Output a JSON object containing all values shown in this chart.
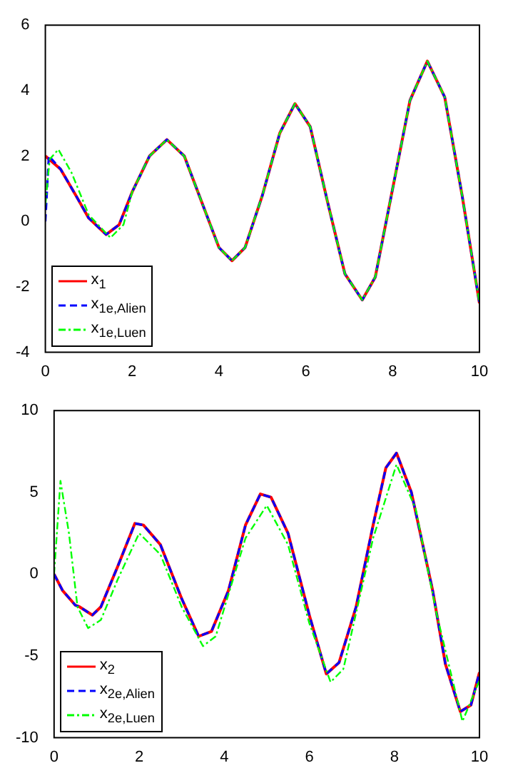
{
  "chart_data": [
    {
      "type": "line",
      "xlim": [
        0,
        10
      ],
      "xticks": [
        0,
        2,
        4,
        6,
        8,
        10
      ],
      "ylim": [
        -4,
        6
      ],
      "yticks": [
        -4,
        -2,
        0,
        2,
        4,
        6
      ],
      "grid": false,
      "legend": "bottom left",
      "marker": "none",
      "series": [
        {
          "name": "x$_{1}$",
          "color": "#ff0000",
          "line_style": "solid",
          "x": [
            0,
            0.35,
            0.7,
            1.0,
            1.4,
            1.7,
            2.0,
            2.4,
            2.8,
            3.2,
            3.6,
            4.0,
            4.3,
            4.6,
            5.0,
            5.4,
            5.75,
            6.1,
            6.5,
            6.9,
            7.3,
            7.6,
            8.0,
            8.4,
            8.8,
            9.2,
            9.6,
            10
          ],
          "values": [
            2,
            1.6,
            0.8,
            0.1,
            -0.4,
            -0.1,
            0.9,
            2.0,
            2.5,
            2.0,
            0.6,
            -0.8,
            -1.2,
            -0.8,
            0.8,
            2.7,
            3.6,
            2.9,
            0.6,
            -1.6,
            -2.4,
            -1.7,
            1.0,
            3.7,
            4.9,
            3.8,
            0.8,
            -2.5
          ]
        },
        {
          "name": "x$_{1e,Alien}$",
          "color": "#0000ff",
          "line_style": "dashed",
          "x": [
            0,
            0.08,
            0.35,
            0.7,
            1.0,
            1.4,
            1.7,
            2.0,
            2.4,
            2.8,
            3.2,
            3.6,
            4.0,
            4.3,
            4.6,
            5.0,
            5.4,
            5.75,
            6.1,
            6.5,
            6.9,
            7.3,
            7.6,
            8.0,
            8.4,
            8.8,
            9.2,
            9.6,
            10
          ],
          "values": [
            0,
            2,
            1.6,
            0.8,
            0.1,
            -0.4,
            -0.1,
            0.9,
            2.0,
            2.5,
            2.0,
            0.6,
            -0.8,
            -1.2,
            -0.8,
            0.8,
            2.7,
            3.6,
            2.9,
            0.6,
            -1.6,
            -2.4,
            -1.7,
            1.0,
            3.7,
            4.9,
            3.8,
            0.8,
            -2.5
          ]
        },
        {
          "name": "x$_{1e,Luen}$",
          "color": "#00ff00",
          "line_style": "dotted",
          "x": [
            0,
            0.1,
            0.3,
            0.6,
            1.0,
            1.5,
            1.8,
            2.0,
            2.4,
            2.8,
            3.2,
            3.6,
            4.0,
            4.3,
            4.6,
            5.0,
            5.4,
            5.75,
            6.1,
            6.5,
            6.9,
            7.3,
            7.6,
            8.0,
            8.4,
            8.8,
            9.2,
            9.6,
            10
          ],
          "values": [
            0.5,
            1.9,
            2.2,
            1.5,
            0.2,
            -0.5,
            -0.1,
            0.9,
            2.0,
            2.5,
            2.0,
            0.6,
            -0.8,
            -1.2,
            -0.8,
            0.8,
            2.7,
            3.6,
            2.9,
            0.6,
            -1.6,
            -2.4,
            -1.7,
            1.0,
            3.7,
            4.9,
            3.8,
            0.8,
            -2.5
          ]
        }
      ]
    },
    {
      "type": "line",
      "xlim": [
        0,
        10
      ],
      "xticks": [
        0,
        2,
        4,
        6,
        8,
        10
      ],
      "ylim": [
        -10,
        10
      ],
      "yticks": [
        -10,
        -5,
        0,
        5,
        10
      ],
      "grid": false,
      "legend": "bottom left",
      "marker": "none",
      "series": [
        {
          "name": "x$_{2}$",
          "color": "#ff0000",
          "line_style": "solid",
          "x": [
            0,
            0.2,
            0.5,
            0.6,
            0.9,
            1.1,
            1.5,
            1.9,
            2.1,
            2.5,
            3.0,
            3.4,
            3.7,
            4.1,
            4.5,
            4.85,
            5.1,
            5.5,
            6.0,
            6.4,
            6.7,
            7.1,
            7.5,
            7.8,
            8.05,
            8.4,
            8.9,
            9.2,
            9.55,
            9.8,
            10
          ],
          "values": [
            0,
            -1,
            -1.9,
            -2.0,
            -2.5,
            -2.0,
            0.5,
            3.1,
            3.0,
            1.8,
            -1.5,
            -3.8,
            -3.5,
            -1.0,
            3.0,
            4.9,
            4.7,
            2.5,
            -2.5,
            -6.1,
            -5.4,
            -2.0,
            3.0,
            6.5,
            7.4,
            5.0,
            -1.0,
            -5.5,
            -8.4,
            -8.0,
            -6.0
          ]
        },
        {
          "name": "x$_{2e,Alien}$",
          "color": "#0000ff",
          "line_style": "dashed",
          "x": [
            0,
            0.2,
            0.5,
            0.6,
            0.9,
            1.1,
            1.5,
            1.9,
            2.1,
            2.5,
            3.0,
            3.4,
            3.7,
            4.1,
            4.5,
            4.85,
            5.1,
            5.5,
            6.0,
            6.4,
            6.7,
            7.1,
            7.5,
            7.8,
            8.05,
            8.4,
            8.9,
            9.2,
            9.55,
            9.8,
            10
          ],
          "values": [
            0,
            -1,
            -1.9,
            -2.0,
            -2.5,
            -2.0,
            0.5,
            3.1,
            3.0,
            1.8,
            -1.5,
            -3.8,
            -3.5,
            -1.0,
            3.0,
            4.9,
            4.7,
            2.5,
            -2.5,
            -6.1,
            -5.4,
            -2.0,
            3.0,
            6.5,
            7.4,
            5.0,
            -1.0,
            -5.5,
            -8.4,
            -8.0,
            -6.0
          ]
        },
        {
          "name": "x$_{2e,Luen}$",
          "color": "#00ff00",
          "line_style": "dotted",
          "x": [
            0,
            0.15,
            0.35,
            0.55,
            0.8,
            1.1,
            1.5,
            2.0,
            2.5,
            3.0,
            3.5,
            3.8,
            4.5,
            5.0,
            5.5,
            6.0,
            6.5,
            6.8,
            7.5,
            8.05,
            8.5,
            9.0,
            9.6,
            10
          ],
          "values": [
            0,
            5.7,
            2.5,
            -2.0,
            -3.3,
            -2.8,
            -0.3,
            2.5,
            1.2,
            -2.0,
            -4.4,
            -3.8,
            2.2,
            4.2,
            1.8,
            -3.0,
            -6.6,
            -5.8,
            2.2,
            6.7,
            4.0,
            -2.5,
            -9.0,
            -6.5
          ]
        }
      ]
    }
  ]
}
